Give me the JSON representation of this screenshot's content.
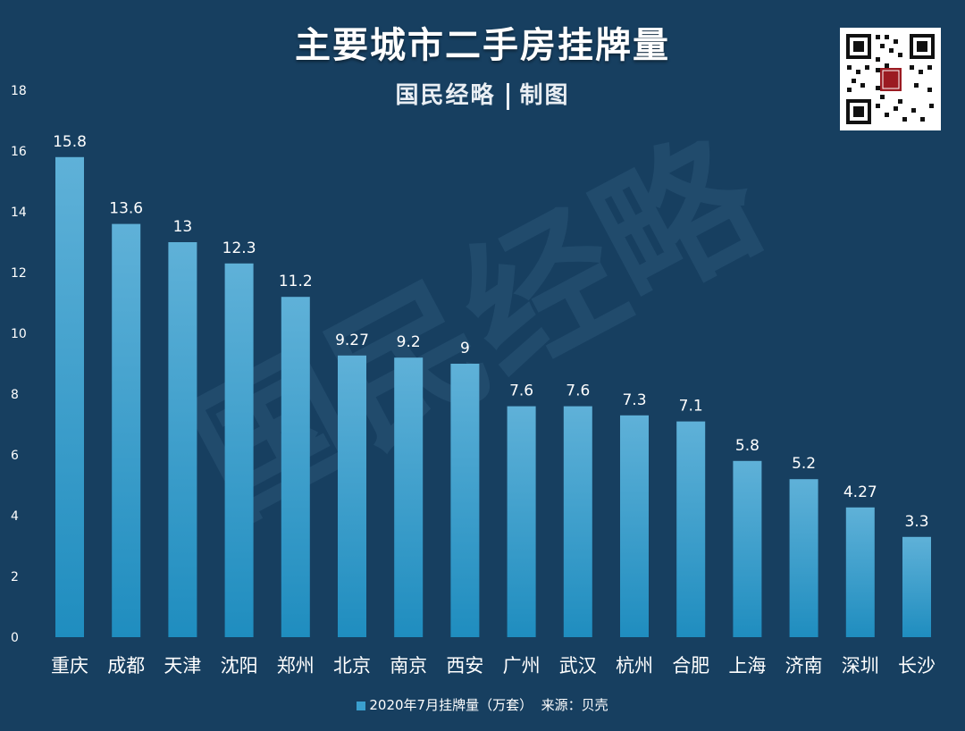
{
  "header": {
    "title": "主要城市二手房挂牌量",
    "subtitle_left": "国民经略",
    "subtitle_right": "制图"
  },
  "watermark": {
    "text": "国民经略"
  },
  "legend": {
    "series_label": "2020年7月挂牌量（万套）",
    "source": "来源：贝壳"
  },
  "colors": {
    "background": "#173f60",
    "bar_top": "#5fb1d8",
    "bar_bottom": "#1f8dbf",
    "text": "#ffffff"
  },
  "chart_data": {
    "type": "bar",
    "title": "主要城市二手房挂牌量",
    "categories": [
      "重庆",
      "成都",
      "天津",
      "沈阳",
      "郑州",
      "北京",
      "南京",
      "西安",
      "广州",
      "武汉",
      "杭州",
      "合肥",
      "上海",
      "济南",
      "深圳",
      "长沙"
    ],
    "series": [
      {
        "name": "2020年7月挂牌量（万套）",
        "values": [
          15.8,
          13.6,
          13,
          12.3,
          11.2,
          9.27,
          9.2,
          9,
          7.6,
          7.6,
          7.3,
          7.1,
          5.8,
          5.2,
          4.27,
          3.3
        ]
      }
    ],
    "value_labels": [
      "15.8",
      "13.6",
      "13",
      "12.3",
      "11.2",
      "9.27",
      "9.2",
      "9",
      "7.6",
      "7.6",
      "7.3",
      "7.1",
      "5.8",
      "5.2",
      "4.27",
      "3.3"
    ],
    "ylim": [
      0,
      18
    ],
    "yticks": [
      0,
      2,
      4,
      6,
      8,
      10,
      12,
      14,
      16,
      18
    ],
    "grid": false,
    "legend_position": "bottom"
  }
}
